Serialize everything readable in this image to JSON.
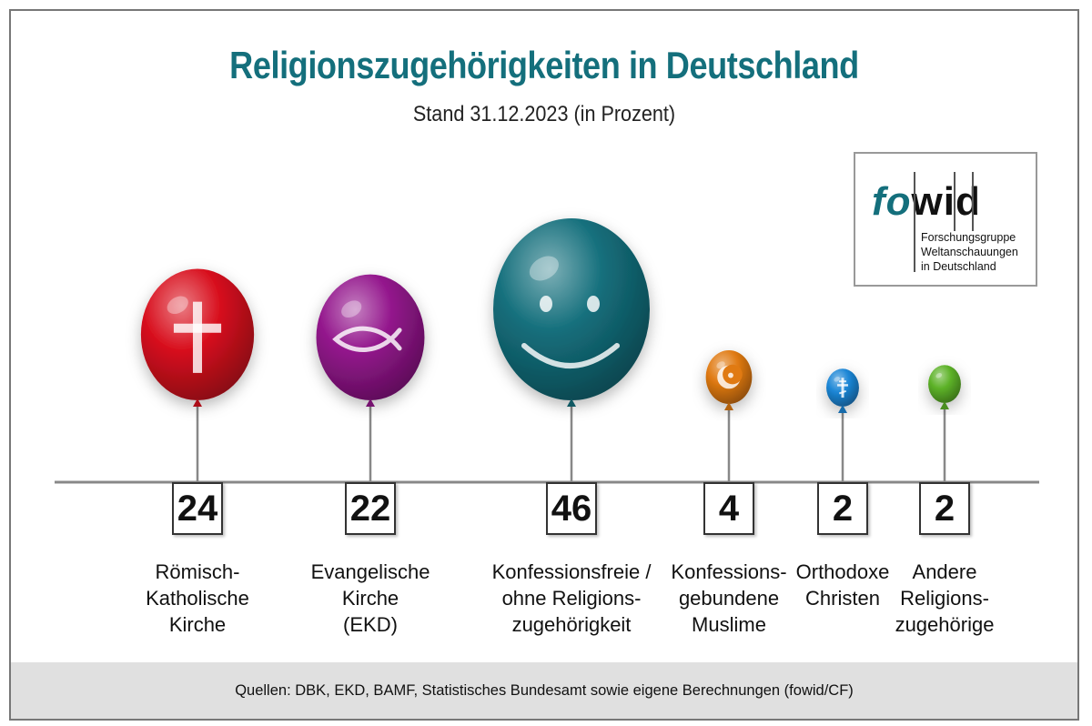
{
  "title": "Religionszugehörigkeiten in Deutschland",
  "subtitle": "Stand 31.12.2023  (in Prozent)",
  "logo": {
    "mark_fo": "fo",
    "mark_wid": "wid",
    "line1": "Forschungsgruppe",
    "line2": "Weltanschauungen",
    "line3": "in Deutschland"
  },
  "source": "Quellen: DBK, EKD, BAMF, Statistisches Bundesamt sowie eigene Berechnungen (fowid/CF)",
  "chart_data": {
    "type": "bar",
    "title": "Religionszugehörigkeiten in Deutschland",
    "subtitle": "Stand 31.12.2023  (in Prozent)",
    "categories": [
      "Römisch-\nKatholische\nKirche",
      "Evangelische\nKirche\n(EKD)",
      "Konfessionsfreie /\nohne Religions-\nzugehörigkeit",
      "Konfessions-\ngebundene\nMuslime",
      "Orthodoxe\nChristen",
      "Andere\nReligions-\nzugehörige"
    ],
    "values": [
      24,
      22,
      46,
      4,
      2,
      2
    ],
    "colors": [
      "#d8101e",
      "#93168c",
      "#146f7c",
      "#e07a12",
      "#1b86d6",
      "#5db228"
    ],
    "icons": [
      "cross-icon",
      "fish-icon",
      "smiley-icon",
      "crescent-star-icon",
      "orthodox-cross-icon",
      "none"
    ]
  }
}
